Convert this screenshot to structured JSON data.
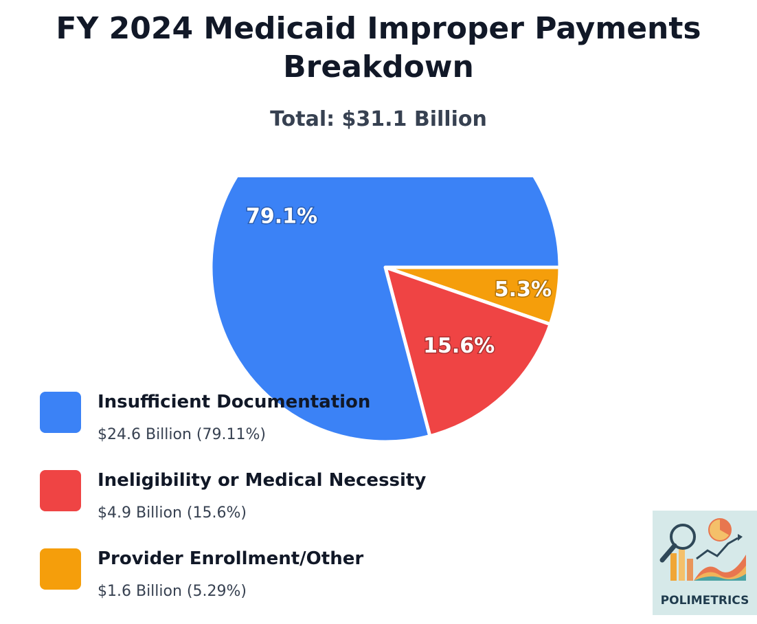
{
  "colors": {
    "insufficient_documentation": "#3b82f6",
    "ineligibility": "#ef4444",
    "provider_enrollment": "#f59e0b"
  },
  "chart_data": {
    "type": "pie",
    "title": "FY 2024 Medicaid Improper Payments Breakdown",
    "subtitle": "Total: $31.1 Billion",
    "legend_position": "bottom-left",
    "slices": [
      {
        "name": "Insufficient Documentation",
        "value": 79.11,
        "label": "79.1%",
        "detail": "$24.6 Billion (79.11%)",
        "color": "#3b82f6"
      },
      {
        "name": "Ineligibility or Medical Necessity",
        "value": 15.6,
        "label": "15.6%",
        "detail": "$4.9 Billion (15.6%)",
        "color": "#ef4444"
      },
      {
        "name": "Provider Enrollment/Other",
        "value": 5.29,
        "label": "5.3%",
        "detail": "$1.6 Billion (5.29%)",
        "color": "#f59e0b"
      }
    ]
  },
  "logo": {
    "text": "POLIMETRICS",
    "icon": "analytics-magnifier-chart-icon"
  }
}
